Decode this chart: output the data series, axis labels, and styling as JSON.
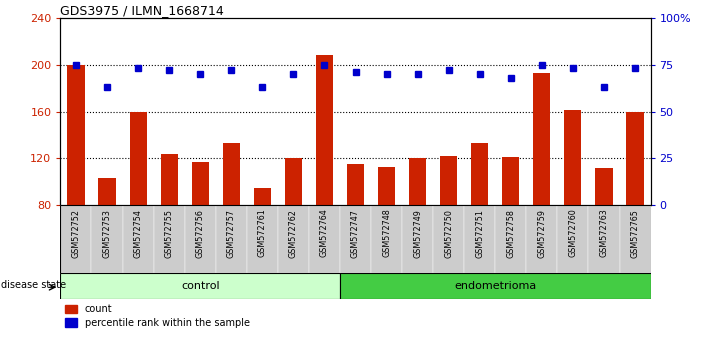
{
  "title": "GDS3975 / ILMN_1668714",
  "samples": [
    "GSM572752",
    "GSM572753",
    "GSM572754",
    "GSM572755",
    "GSM572756",
    "GSM572757",
    "GSM572761",
    "GSM572762",
    "GSM572764",
    "GSM572747",
    "GSM572748",
    "GSM572749",
    "GSM572750",
    "GSM572751",
    "GSM572758",
    "GSM572759",
    "GSM572760",
    "GSM572763",
    "GSM572765"
  ],
  "bar_values": [
    200,
    103,
    160,
    124,
    117,
    133,
    95,
    120,
    208,
    115,
    113,
    120,
    122,
    133,
    121,
    193,
    161,
    112,
    160
  ],
  "pct_values": [
    75,
    63,
    73,
    72,
    70,
    72,
    63,
    70,
    75,
    71,
    70,
    70,
    72,
    70,
    68,
    75,
    73,
    63,
    73
  ],
  "control_count": 9,
  "endometrioma_count": 10,
  "ylim_left": [
    80,
    240
  ],
  "ylim_right": [
    0,
    100
  ],
  "yticks_left": [
    80,
    120,
    160,
    200,
    240
  ],
  "yticks_right": [
    0,
    25,
    50,
    75,
    100
  ],
  "ytick_labels_right": [
    "0",
    "25",
    "50",
    "75",
    "100%"
  ],
  "bar_color": "#cc2200",
  "dot_color": "#0000cc",
  "control_bg": "#ccffcc",
  "endometrioma_bg": "#44cc44",
  "sample_bg": "#cccccc",
  "grid_color": "#000000",
  "label_color_left": "#cc2200",
  "label_color_right": "#0000cc",
  "dotted_lines": [
    120,
    160,
    200
  ]
}
